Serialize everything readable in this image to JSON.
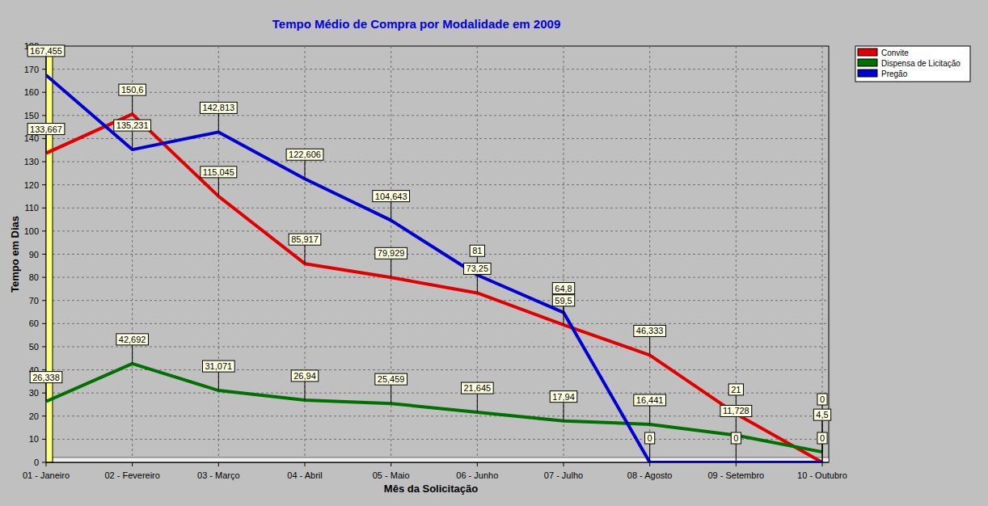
{
  "chart_data": {
    "type": "line",
    "title": "Tempo Médio de Compra por Modalidade em 2009",
    "x_label": "Mês da Solicitação",
    "y_label": "Tempo em Dias",
    "categories": [
      "01 - Janeiro",
      "02 - Fevereiro",
      "03 - Março",
      "04 - Abril",
      "05 - Maio",
      "06 - Junho",
      "07 - Julho",
      "08 - Agosto",
      "09 - Setembro",
      "10 - Outubro"
    ],
    "series": [
      {
        "name": "Convite",
        "color": "#e00000",
        "values": [
          133.667,
          150.6,
          115.045,
          85.917,
          79.929,
          73.25,
          59.5,
          46.333,
          21,
          0
        ],
        "value_labels": [
          "133,667",
          "150,6",
          "115,045",
          "85,917",
          "79,929",
          "73,25",
          "59,5",
          "46,333",
          "21",
          "0"
        ]
      },
      {
        "name": "Dispensa de Licitação",
        "color": "#007000",
        "values": [
          26.338,
          42.692,
          31.071,
          26.94,
          25.459,
          21.645,
          17.94,
          16.441,
          11.728,
          4.5
        ],
        "value_labels": [
          "26,338",
          "42,692",
          "31,071",
          "26,94",
          "25,459",
          "21,645",
          "17,94",
          "16,441",
          "11,728",
          "4,5"
        ]
      },
      {
        "name": "Pregão",
        "color": "#0000d0",
        "values": [
          167.455,
          135.231,
          142.813,
          122.606,
          104.643,
          81,
          64.8,
          0,
          0,
          0
        ],
        "value_labels": [
          "167,455",
          "135,231",
          "142,813",
          "122,606",
          "104,643",
          "81",
          "64,8",
          "0",
          "0",
          "0"
        ]
      }
    ],
    "ylim": [
      0,
      180
    ],
    "yticks": [
      0,
      10,
      20,
      30,
      40,
      50,
      60,
      70,
      80,
      90,
      100,
      110,
      120,
      130,
      140,
      150,
      160,
      170,
      180
    ],
    "grid": true,
    "legend": "upper right",
    "data_labels": true
  }
}
